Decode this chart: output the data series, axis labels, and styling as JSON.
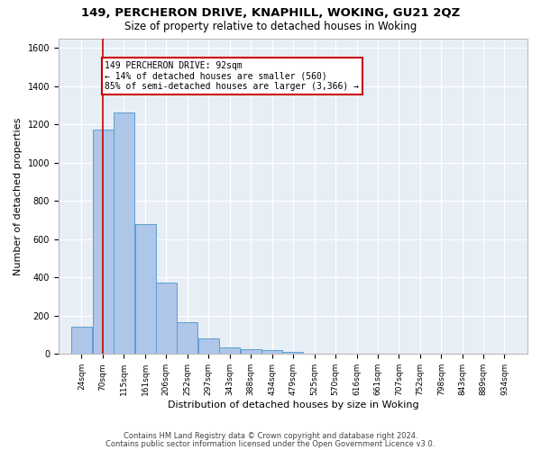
{
  "title1": "149, PERCHERON DRIVE, KNAPHILL, WOKING, GU21 2QZ",
  "title2": "Size of property relative to detached houses in Woking",
  "xlabel": "Distribution of detached houses by size in Woking",
  "ylabel": "Number of detached properties",
  "bar_values": [
    145,
    1175,
    1260,
    680,
    375,
    165,
    80,
    35,
    25,
    20,
    12,
    0,
    0,
    0,
    0,
    0,
    0,
    0,
    0,
    0
  ],
  "bar_color": "#aec6e8",
  "bar_edge_color": "#5a9fd4",
  "vline_x": 92,
  "vline_color": "#cc0000",
  "ylim": [
    0,
    1650
  ],
  "annotation_text": "149 PERCHERON DRIVE: 92sqm\n← 14% of detached houses are smaller (560)\n85% of semi-detached houses are larger (3,366) →",
  "annotation_box_color": "#cc0000",
  "bg_color": "#e8eef6",
  "footer1": "Contains HM Land Registry data © Crown copyright and database right 2024.",
  "footer2": "Contains public sector information licensed under the Open Government Licence v3.0.",
  "bin_edges": [
    24,
    70,
    115,
    161,
    206,
    252,
    297,
    343,
    388,
    434,
    479,
    525,
    570,
    616,
    661,
    707,
    752,
    798,
    843,
    889,
    934
  ],
  "bin_width": 45,
  "title1_fontsize": 9.5,
  "title2_fontsize": 8.5,
  "ylabel_fontsize": 8,
  "xlabel_fontsize": 8,
  "tick_fontsize": 6.5,
  "footer_fontsize": 6,
  "annotation_fontsize": 7
}
